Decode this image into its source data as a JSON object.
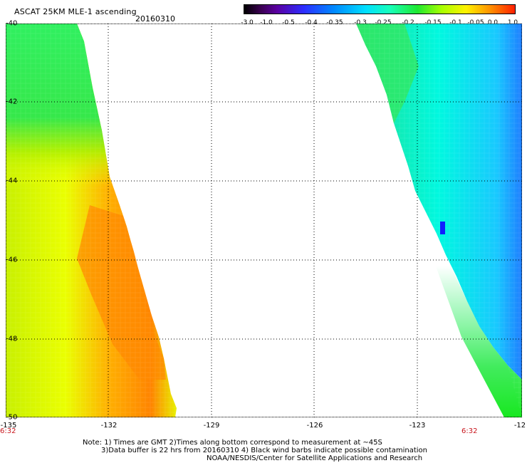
{
  "header": {
    "title": "ASCAT 25KM MLE-1 ascending",
    "date": "20160310"
  },
  "colorbar": {
    "labels": [
      "-3.0",
      "-1.0",
      "-0.5",
      "-0.4",
      "-0.35",
      "-0.3",
      "-0.25",
      "-0.2",
      "-0.15",
      "-0.1",
      "-0.05",
      "0.0",
      "1.0"
    ]
  },
  "axes": {
    "x_labels": [
      "-135",
      "-132",
      "-129",
      "-126",
      "-123",
      "-12"
    ],
    "y_labels": [
      "-40",
      "-42",
      "-44",
      "-46",
      "-48",
      "-50"
    ],
    "time_left": "6:32",
    "time_right": "6:32"
  },
  "notes": {
    "line1": "Note: 1) Times are GMT 2)Times along bottom correspond to measurement at ~45S",
    "line2": "3)Data buffer is 22 hrs from 20160310 4) Black wind barbs indicate possible contamination",
    "line3": "NOAA/NESDIS/Center for Satellite Applications and Research"
  },
  "colors": {
    "grid": "#000000",
    "time_label": "#c8161d"
  }
}
